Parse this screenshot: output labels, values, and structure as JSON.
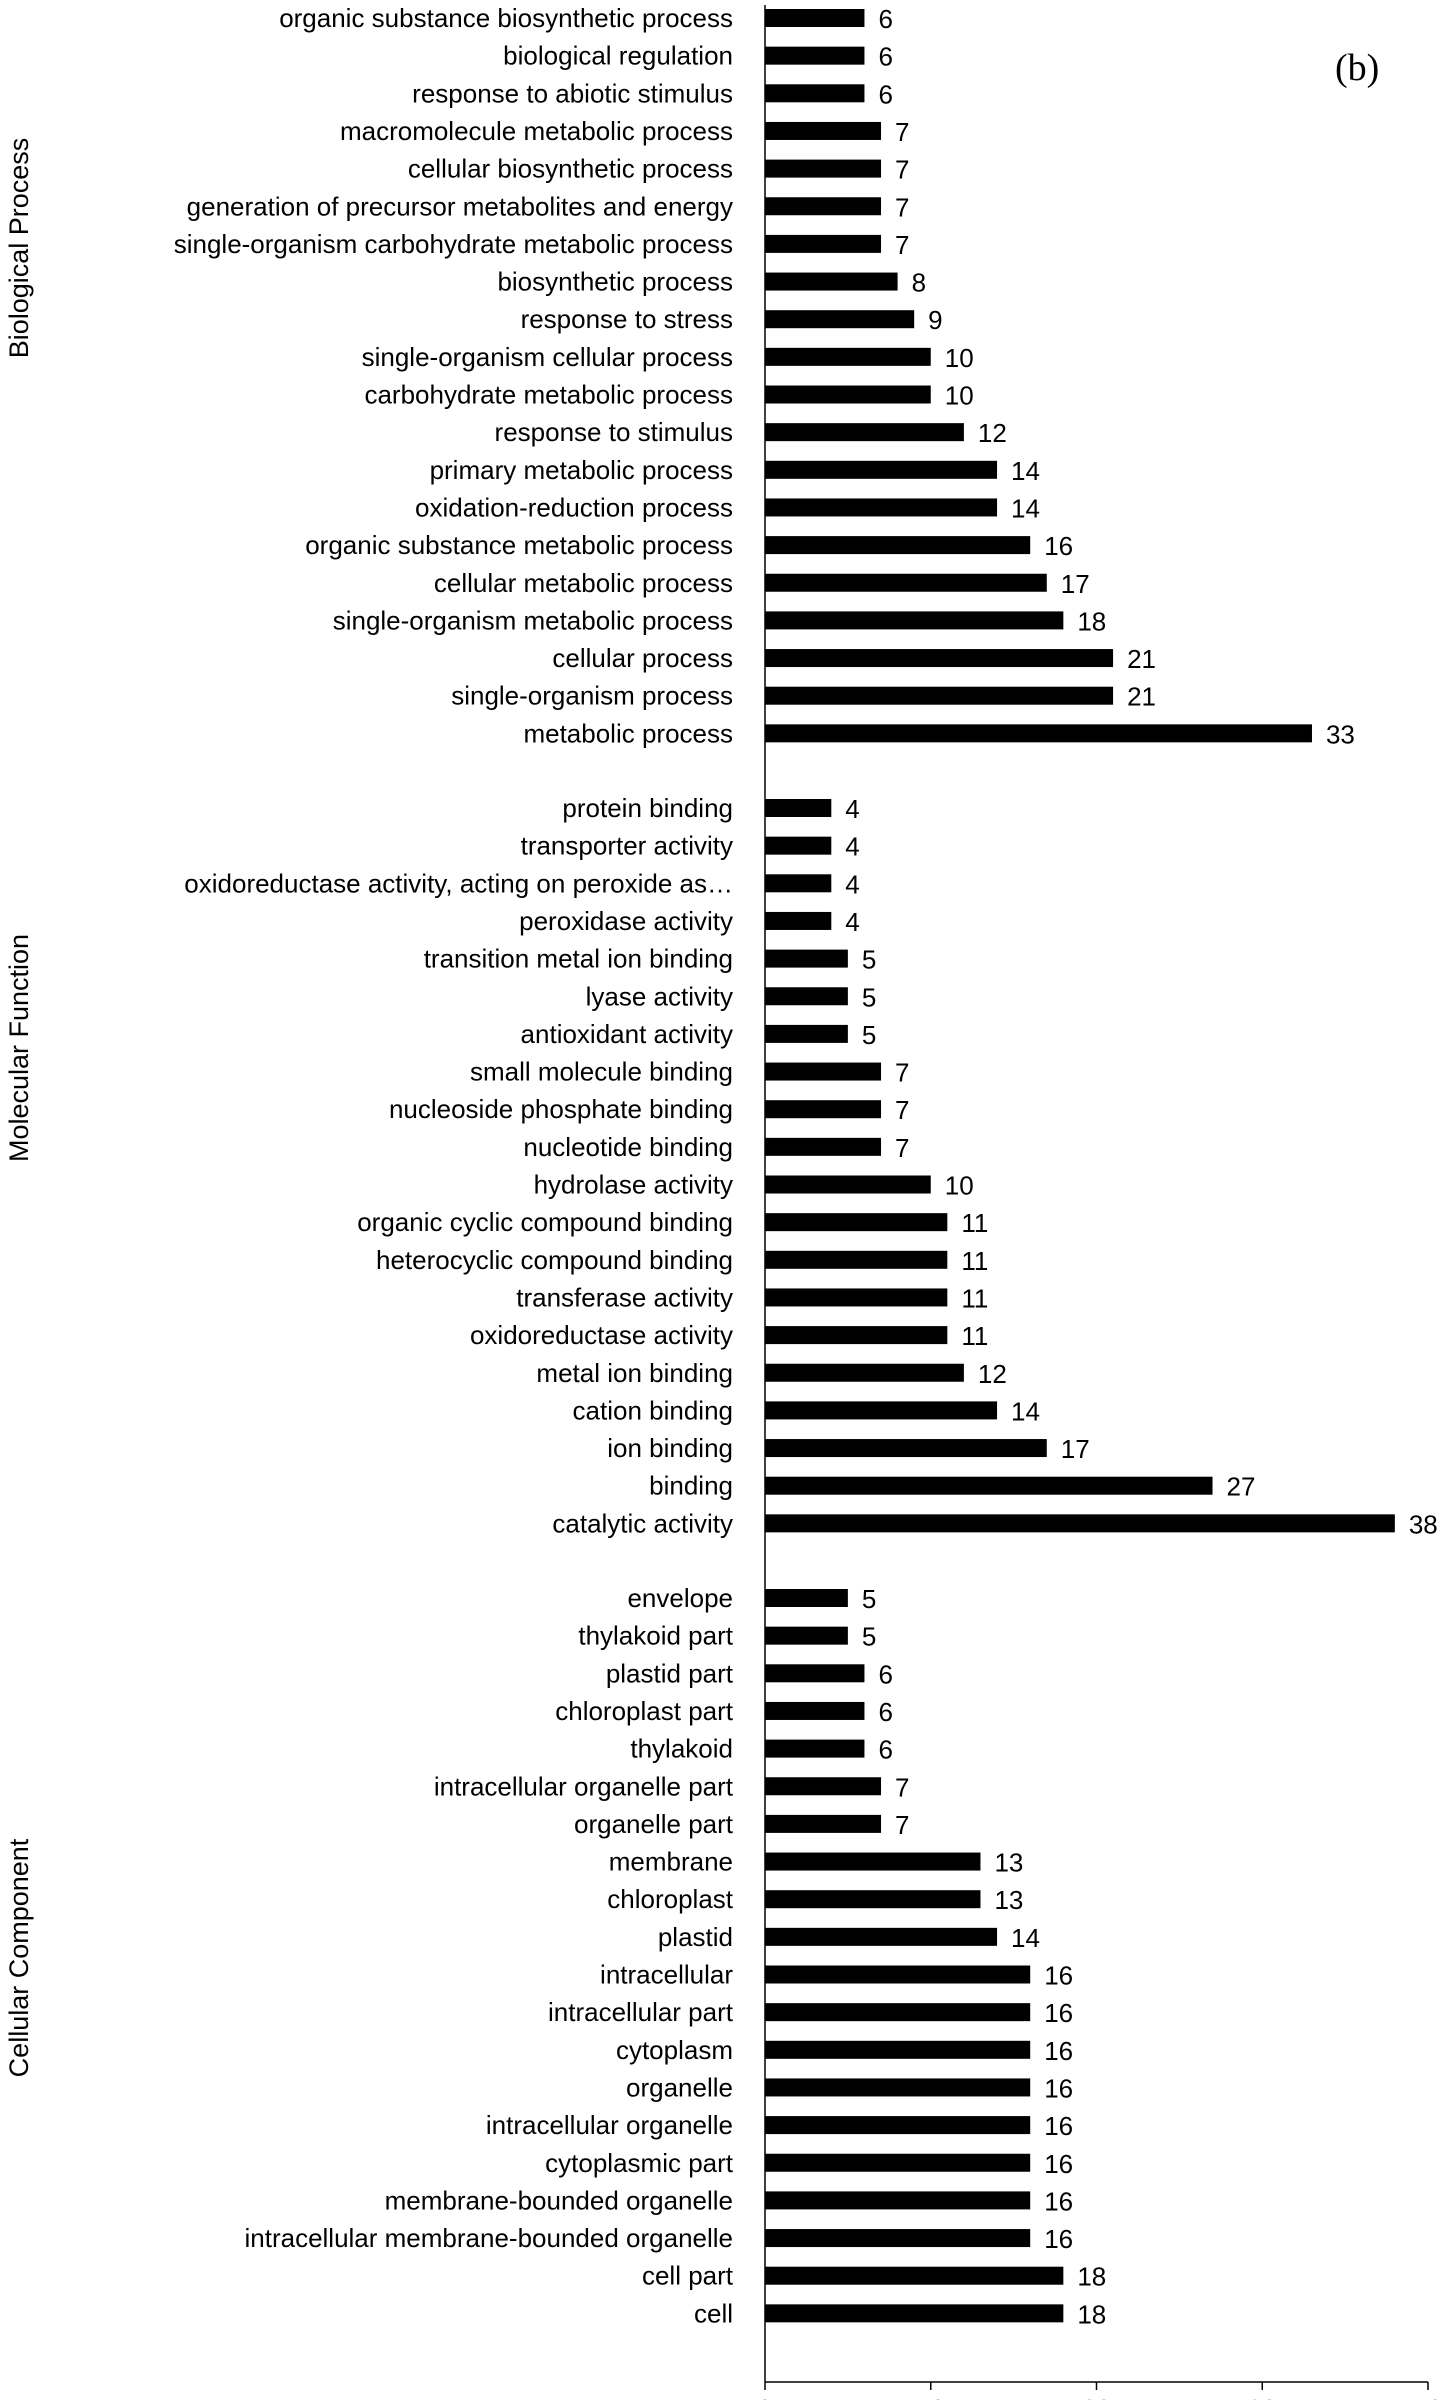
{
  "panel_label": "(b)",
  "chart_data": {
    "type": "bar",
    "orientation": "horizontal",
    "xlim": [
      0,
      40
    ],
    "xticks": [
      0,
      10,
      20,
      30,
      40
    ],
    "bar_color": "#000000",
    "groups": [
      {
        "name": "Biological Process",
        "categories": [
          "organic substance biosynthetic process",
          "biological regulation",
          "response to abiotic stimulus",
          "macromolecule metabolic process",
          "cellular biosynthetic process",
          "generation of precursor metabolites and energy",
          "single-organism carbohydrate metabolic process",
          "biosynthetic process",
          "response to stress",
          "single-organism cellular process",
          "carbohydrate metabolic process",
          "response to stimulus",
          "primary metabolic process",
          "oxidation-reduction process",
          "organic substance metabolic process",
          "cellular metabolic process",
          "single-organism metabolic process",
          "cellular process",
          "single-organism process",
          "metabolic process"
        ],
        "values": [
          6,
          6,
          6,
          7,
          7,
          7,
          7,
          8,
          9,
          10,
          10,
          12,
          14,
          14,
          16,
          17,
          18,
          21,
          21,
          33
        ]
      },
      {
        "name": "Molecular Function",
        "categories": [
          "protein binding",
          "transporter activity",
          "oxidoreductase activity, acting on peroxide as…",
          "peroxidase activity",
          "transition metal ion binding",
          "lyase activity",
          "antioxidant activity",
          "small molecule binding",
          "nucleoside phosphate binding",
          "nucleotide binding",
          "hydrolase activity",
          "organic cyclic compound binding",
          "heterocyclic compound binding",
          "transferase activity",
          "oxidoreductase activity",
          "metal ion binding",
          "cation binding",
          "ion binding",
          "binding",
          "catalytic activity"
        ],
        "values": [
          4,
          4,
          4,
          4,
          5,
          5,
          5,
          7,
          7,
          7,
          10,
          11,
          11,
          11,
          11,
          12,
          14,
          17,
          27,
          38
        ]
      },
      {
        "name": "Cellular Component",
        "categories": [
          "envelope",
          "thylakoid part",
          "plastid part",
          "chloroplast part",
          "thylakoid",
          "intracellular organelle part",
          "organelle part",
          "membrane",
          "chloroplast",
          "plastid",
          "intracellular",
          "intracellular part",
          "cytoplasm",
          "organelle",
          "intracellular organelle",
          "cytoplasmic part",
          "membrane-bounded organelle",
          "intracellular membrane-bounded organelle",
          "cell part",
          "cell"
        ],
        "values": [
          5,
          5,
          6,
          6,
          6,
          7,
          7,
          13,
          13,
          14,
          16,
          16,
          16,
          16,
          16,
          16,
          16,
          16,
          18,
          18
        ]
      }
    ]
  }
}
